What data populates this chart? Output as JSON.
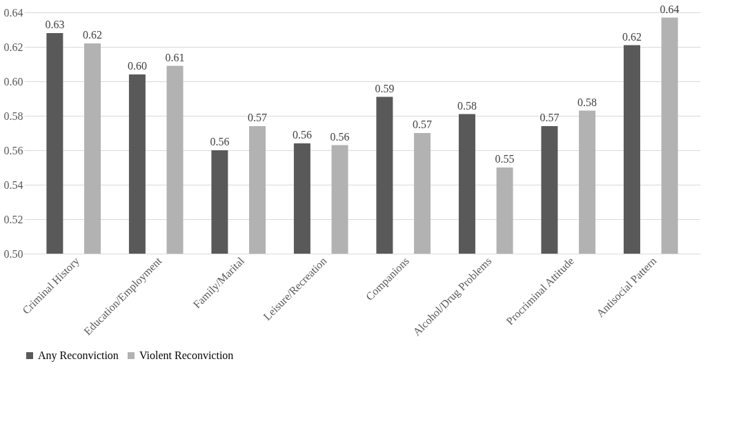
{
  "chart_data": {
    "type": "bar",
    "categories": [
      "Criminal History",
      "Education/Employment",
      "Family/Marital",
      "Leisure/Recreation",
      "Companions",
      "Alcohol/Drug Problems",
      "Procriminal Attitude",
      "Antisocial Pattern"
    ],
    "series": [
      {
        "name": "Any Reconviction",
        "color": "#595959",
        "values": [
          0.628,
          0.604,
          0.56,
          0.564,
          0.591,
          0.581,
          0.574,
          0.621
        ],
        "value_labels": [
          "0.63",
          "0.60",
          "0.56",
          "0.56",
          "0.59",
          "0.58",
          "0.57",
          "0.62"
        ]
      },
      {
        "name": "Violent Reconviction",
        "color": "#b2b2b2",
        "values": [
          0.622,
          0.609,
          0.574,
          0.563,
          0.57,
          0.55,
          0.583,
          0.637
        ],
        "value_labels": [
          "0.62",
          "0.61",
          "0.57",
          "0.56",
          "0.57",
          "0.55",
          "0.58",
          "0.64"
        ]
      }
    ],
    "ylim": [
      0.5,
      0.64
    ],
    "yticks": [
      {
        "value": 0.5,
        "label": "0.50"
      },
      {
        "value": 0.52,
        "label": "0.52"
      },
      {
        "value": 0.54,
        "label": "0.54"
      },
      {
        "value": 0.56,
        "label": "0.56"
      },
      {
        "value": 0.58,
        "label": "0.58"
      },
      {
        "value": 0.6,
        "label": "0.60"
      },
      {
        "value": 0.62,
        "label": "0.62"
      },
      {
        "value": 0.64,
        "label": "0.64"
      }
    ],
    "grid": "y",
    "legend": "bottom"
  }
}
